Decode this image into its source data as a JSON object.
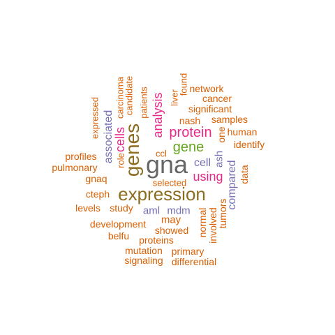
{
  "palette": {
    "orange": "#D95F02",
    "purple": "#7570B3",
    "magenta": "#E7298A",
    "green": "#66A61E",
    "olive": "#8C6D1F",
    "gray": "#666666"
  },
  "words": [
    {
      "text": "gna",
      "color": "#666666"
    },
    {
      "text": "expression",
      "color": "#8C6D1F"
    },
    {
      "text": "genes",
      "color": "#8C6D1F"
    },
    {
      "text": "protein",
      "color": "#E7298A"
    },
    {
      "text": "gene",
      "color": "#66A61E"
    },
    {
      "text": "using",
      "color": "#E7298A"
    },
    {
      "text": "analysis",
      "color": "#E7298A"
    },
    {
      "text": "cells",
      "color": "#E7298A"
    },
    {
      "text": "associated",
      "color": "#7570B3"
    },
    {
      "text": "compared",
      "color": "#7570B3"
    },
    {
      "text": "cell",
      "color": "#7570B3"
    },
    {
      "text": "aml",
      "color": "#7570B3"
    },
    {
      "text": "mdm",
      "color": "#7570B3"
    },
    {
      "text": "ash",
      "color": "#7570B3"
    },
    {
      "text": "may",
      "color": "#D95F02"
    },
    {
      "text": "network",
      "color": "#D95F02"
    },
    {
      "text": "cancer",
      "color": "#D95F02"
    },
    {
      "text": "significant",
      "color": "#D95F02"
    },
    {
      "text": "nash",
      "color": "#D95F02"
    },
    {
      "text": "samples",
      "color": "#D95F02"
    },
    {
      "text": "human",
      "color": "#D95F02"
    },
    {
      "text": "identify",
      "color": "#D95F02"
    },
    {
      "text": "one",
      "color": "#D95F02"
    },
    {
      "text": "data",
      "color": "#D95F02"
    },
    {
      "text": "profiles",
      "color": "#D95F02"
    },
    {
      "text": "pulmonary",
      "color": "#D95F02"
    },
    {
      "text": "gnaq",
      "color": "#D95F02"
    },
    {
      "text": "cteph",
      "color": "#D95F02"
    },
    {
      "text": "levels",
      "color": "#D95F02"
    },
    {
      "text": "study",
      "color": "#D95F02"
    },
    {
      "text": "development",
      "color": "#D95F02"
    },
    {
      "text": "belfu",
      "color": "#D95F02"
    },
    {
      "text": "proteins",
      "color": "#D95F02"
    },
    {
      "text": "showed",
      "color": "#D95F02"
    },
    {
      "text": "mutation",
      "color": "#D95F02"
    },
    {
      "text": "primary",
      "color": "#D95F02"
    },
    {
      "text": "signaling",
      "color": "#D95F02"
    },
    {
      "text": "differential",
      "color": "#D95F02"
    },
    {
      "text": "selected",
      "color": "#D95F02"
    },
    {
      "text": "ccl",
      "color": "#D95F02"
    },
    {
      "text": "role",
      "color": "#D95F02"
    },
    {
      "text": "expressed",
      "color": "#D95F02"
    },
    {
      "text": "carcinoma",
      "color": "#D95F02"
    },
    {
      "text": "candidate",
      "color": "#D95F02"
    },
    {
      "text": "patients",
      "color": "#D95F02"
    },
    {
      "text": "liver",
      "color": "#D95F02"
    },
    {
      "text": "found",
      "color": "#D95F02"
    },
    {
      "text": "normal",
      "color": "#D95F02"
    },
    {
      "text": "involved",
      "color": "#D95F02"
    },
    {
      "text": "tumors",
      "color": "#D95F02"
    }
  ]
}
